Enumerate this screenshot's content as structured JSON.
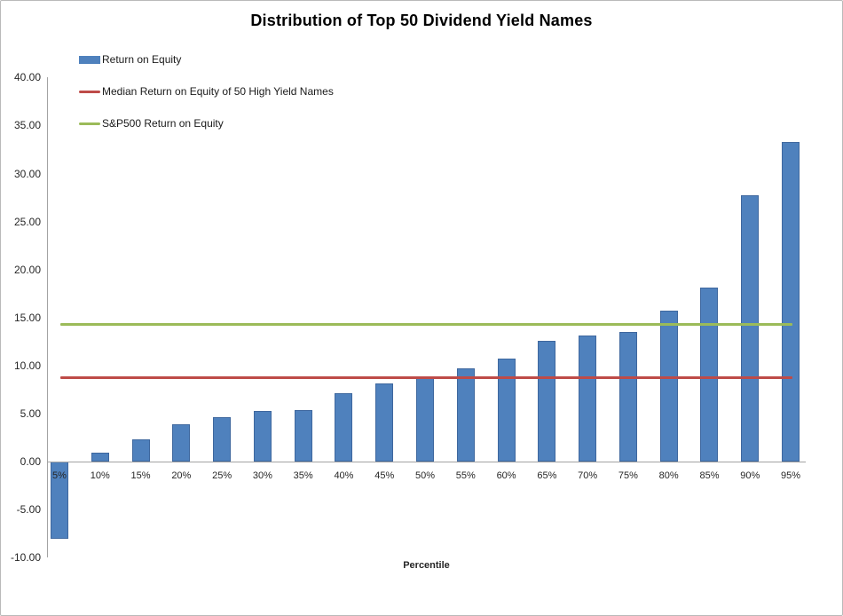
{
  "title": "Distribution of Top 50 Dividend Yield Names",
  "legend": {
    "items": [
      {
        "label": "Return on Equity",
        "type": "bar",
        "color": "#4F81BD"
      },
      {
        "label": "Median Return on Equity of 50 High Yield Names",
        "type": "line",
        "color": "#BE4B48"
      },
      {
        "label": "S&P500 Return on Equity",
        "type": "line",
        "color": "#9BBB59"
      }
    ]
  },
  "chart_data": {
    "type": "bar",
    "title": "Distribution of Top 50 Dividend Yield Names",
    "categories": [
      "5%",
      "10%",
      "15%",
      "20%",
      "25%",
      "30%",
      "35%",
      "40%",
      "45%",
      "50%",
      "55%",
      "60%",
      "65%",
      "70%",
      "75%",
      "80%",
      "85%",
      "90%",
      "95%"
    ],
    "series": [
      {
        "name": "Return on Equity",
        "type": "bar",
        "color": "#4F81BD",
        "values": [
          -8.0,
          0.9,
          2.3,
          3.9,
          4.6,
          5.3,
          5.4,
          7.1,
          8.1,
          8.8,
          9.7,
          10.7,
          12.6,
          13.1,
          13.5,
          15.7,
          18.1,
          27.7,
          33.3
        ]
      },
      {
        "name": "Median Return on Equity of 50 High Yield Names",
        "type": "line",
        "color": "#BE4B48",
        "value": 8.7
      },
      {
        "name": "S&P500 Return on Equity",
        "type": "line",
        "color": "#9BBB59",
        "value": 14.3
      }
    ],
    "xlabel": "Percentile",
    "ylabel": "",
    "ylim": [
      -10,
      40
    ],
    "y_ticks": [
      "40.00",
      "35.00",
      "30.00",
      "25.00",
      "20.00",
      "15.00",
      "10.00",
      "5.00",
      "0.00",
      "-5.00",
      "-10.00"
    ],
    "grid": false,
    "legend_position": "top-left"
  },
  "colors": {
    "bar_fill": "#4F81BD",
    "bar_border": "#3E679E",
    "median_line": "#BE4B48",
    "sp500_line": "#9BBB59",
    "axis": "#a3a3a3",
    "text": "#262626"
  }
}
